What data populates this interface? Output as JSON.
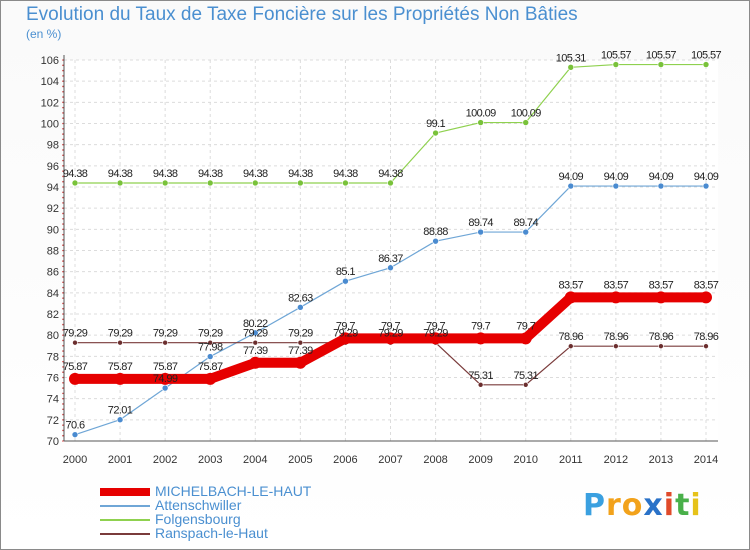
{
  "chart_data": {
    "type": "line",
    "title": "Evolution du Taux de Taxe Foncière sur les Propriétés Non Bâties",
    "subtitle": "(en %)",
    "categories": [
      "2000",
      "2001",
      "2002",
      "2003",
      "2004",
      "2005",
      "2006",
      "2007",
      "2008",
      "2009",
      "2010",
      "2011",
      "2012",
      "2013",
      "2014"
    ],
    "ylim": [
      70,
      106
    ],
    "yticks": [
      70,
      72,
      74,
      76,
      78,
      80,
      82,
      84,
      86,
      88,
      90,
      92,
      94,
      96,
      98,
      100,
      102,
      104,
      106
    ],
    "grid": true,
    "legend_position": "bottom-left",
    "series": [
      {
        "name": "MICHELBACH-LE-HAUT",
        "color": "#e60000",
        "values": [
          75.87,
          75.87,
          75.87,
          75.87,
          77.39,
          77.39,
          79.7,
          79.7,
          79.7,
          79.7,
          79.7,
          83.57,
          83.57,
          83.57,
          83.57
        ],
        "labels": [
          "75.87",
          "75.87",
          "75.87",
          "75.87",
          "77.39",
          "77.39",
          "79.7",
          "79.7",
          "79.7",
          "79.7",
          "79.7",
          "83.57",
          "83.57",
          "83.57",
          "83.57"
        ]
      },
      {
        "name": "Attenschwiller",
        "color": "#6fa6d6",
        "values": [
          70.6,
          72.01,
          75.0,
          77.98,
          80.22,
          82.63,
          85.1,
          86.37,
          88.88,
          89.74,
          89.74,
          94.09,
          94.09,
          94.09,
          94.09
        ],
        "labels": [
          "70.6",
          "72.01",
          "74.99",
          "77.98",
          "80.22",
          "82.63",
          "85.1",
          "86.37",
          "88.88",
          "89.74",
          "89.74",
          "94.09",
          "94.09",
          "94.09",
          "94.09"
        ]
      },
      {
        "name": "Folgensbourg",
        "color": "#8fd14f",
        "values": [
          94.38,
          94.38,
          94.38,
          94.38,
          94.38,
          94.38,
          94.38,
          94.38,
          99.1,
          100.09,
          100.09,
          105.31,
          105.57,
          105.57,
          105.57
        ],
        "labels": [
          "94.38",
          "94.38",
          "94.38",
          "94.38",
          "94.38",
          "94.38",
          "94.38",
          "94.38",
          "99.1",
          "100.09",
          "100.09",
          "105.31",
          "105.57",
          "105.57",
          "105.57"
        ]
      },
      {
        "name": "Ranspach-le-Haut",
        "color": "#7a3b3b",
        "values": [
          79.29,
          79.29,
          79.29,
          79.29,
          79.29,
          79.29,
          79.29,
          79.29,
          79.29,
          75.31,
          75.31,
          78.96,
          78.96,
          78.96,
          78.96
        ],
        "labels": [
          "79.29",
          "79.29",
          "79.29",
          "79.29",
          "79.29",
          "79.29",
          "79.29",
          "79.29",
          "79.29",
          "75.31",
          "75.31",
          "78.96",
          "78.96",
          "78.96",
          "78.96"
        ]
      }
    ]
  },
  "logo": {
    "letters": [
      "P",
      "r",
      "o",
      "x",
      "i",
      "t",
      "i"
    ],
    "colors": [
      "#3aa0e0",
      "#f2a21b",
      "#f2a21b",
      "#2a72c8",
      "#e04a2a",
      "#49b04a",
      "#e6c21a"
    ]
  }
}
